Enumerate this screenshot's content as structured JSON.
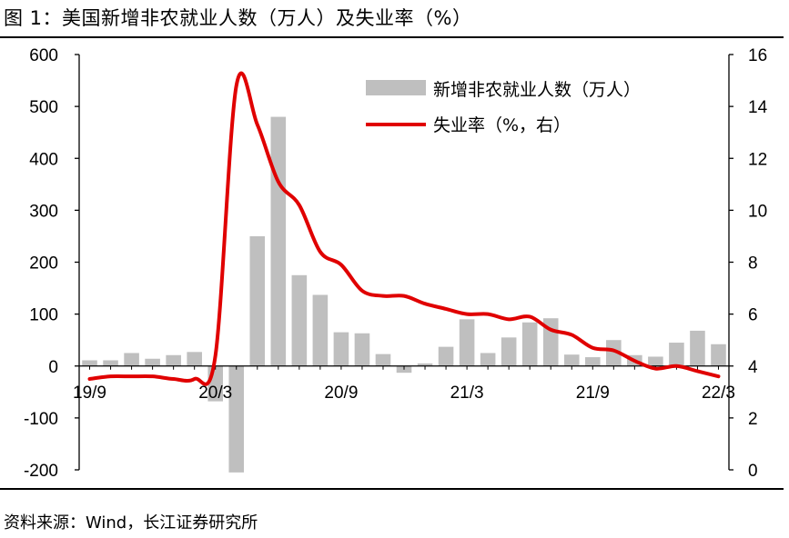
{
  "figure": {
    "title": "图 1：美国新增非农就业人数（万人）及失业率（%）",
    "source": "资料来源：Wind，长江证券研究所"
  },
  "colors": {
    "bar": "#bfbfbf",
    "line": "#e00000",
    "axis": "#000000"
  },
  "chart_data": {
    "type": "bar+line",
    "x": [
      "2019-09",
      "2019-10",
      "2019-11",
      "2019-12",
      "2020-01",
      "2020-02",
      "2020-03",
      "2020-04",
      "2020-05",
      "2020-06",
      "2020-07",
      "2020-08",
      "2020-09",
      "2020-10",
      "2020-11",
      "2020-12",
      "2021-01",
      "2021-02",
      "2021-03",
      "2021-04",
      "2021-05",
      "2021-06",
      "2021-07",
      "2021-08",
      "2021-09",
      "2021-10",
      "2021-11",
      "2021-12",
      "2022-01",
      "2022-02",
      "2022-03"
    ],
    "x_tick_labels": [
      "19/9",
      "20/3",
      "20/9",
      "21/3",
      "21/9",
      "22/3"
    ],
    "series": [
      {
        "name": "新增非农就业人数（万人）",
        "type": "bar",
        "axis": "left",
        "values": [
          11,
          11,
          25,
          14,
          21,
          27,
          -68,
          -205,
          250,
          480,
          175,
          137,
          65,
          63,
          23,
          -13,
          5,
          37,
          90,
          25,
          55,
          84,
          92,
          22,
          17,
          50,
          21,
          18,
          45,
          68,
          42
        ]
      },
      {
        "name": "失业率（%，右）",
        "type": "line",
        "axis": "right",
        "values": [
          3.5,
          3.6,
          3.6,
          3.6,
          3.5,
          3.5,
          4.4,
          14.8,
          13.3,
          11.1,
          10.2,
          8.4,
          7.9,
          6.9,
          6.7,
          6.7,
          6.4,
          6.2,
          6.0,
          6.0,
          5.8,
          5.9,
          5.4,
          5.2,
          4.7,
          4.6,
          4.2,
          3.9,
          4.0,
          3.8,
          3.6
        ]
      }
    ],
    "ylim_left": [
      -200,
      600
    ],
    "yticks_left": [
      "-200",
      "-100",
      "0",
      "100",
      "200",
      "300",
      "400",
      "500",
      "600"
    ],
    "ylim_right": [
      0,
      16
    ],
    "yticks_right": [
      "0",
      "2",
      "4",
      "6",
      "8",
      "10",
      "12",
      "14",
      "16"
    ],
    "grid": false,
    "legend_position": "top-right"
  }
}
